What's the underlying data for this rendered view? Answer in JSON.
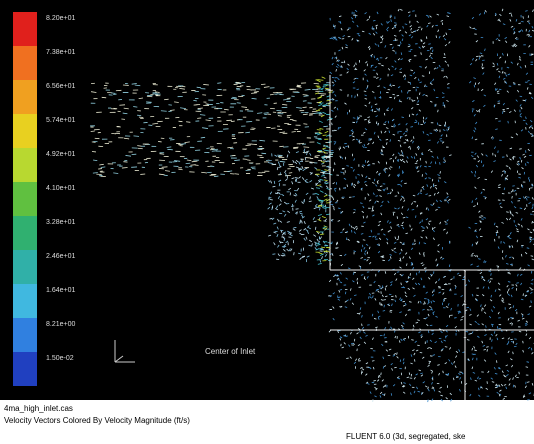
{
  "colorbar": {
    "labels": [
      "8.20e+01",
      "7.38e+01",
      "6.56e+01",
      "5.74e+01",
      "4.92e+01",
      "4.10e+01",
      "3.28e+01",
      "2.46e+01",
      "1.64e+01",
      "8.21e+00",
      "1.50e-02"
    ]
  },
  "annotation": "Center of Inlet",
  "footer": {
    "case": "4ma_high_inlet.cas",
    "description": "Velocity Vectors Colored By Velocity Magnitude (ft/s)",
    "version": "FLUENT 6.0 (3d, segregated, ske"
  }
}
